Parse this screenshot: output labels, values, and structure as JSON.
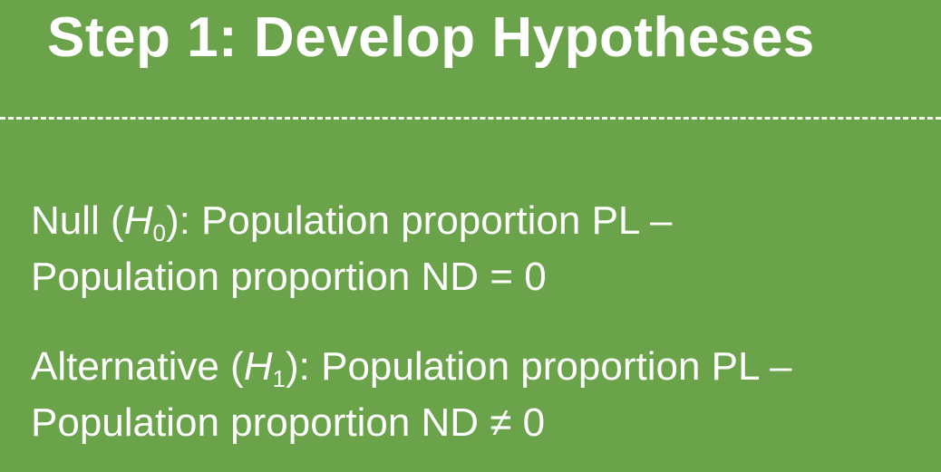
{
  "slide": {
    "title": "Step 1: Develop Hypotheses",
    "null_hypothesis": {
      "label_prefix": "Null (",
      "symbol": "H",
      "subscript": "0",
      "label_suffix": "): Population proportion PL –",
      "line2": "Population proportion ND = 0"
    },
    "alternative_hypothesis": {
      "label_prefix": "Alternative (",
      "symbol": "H",
      "subscript": "1",
      "label_suffix": "): Population proportion PL –",
      "line2": "Population proportion ND ≠ 0"
    }
  },
  "colors": {
    "background": "#6aa349",
    "text": "#ffffff"
  }
}
